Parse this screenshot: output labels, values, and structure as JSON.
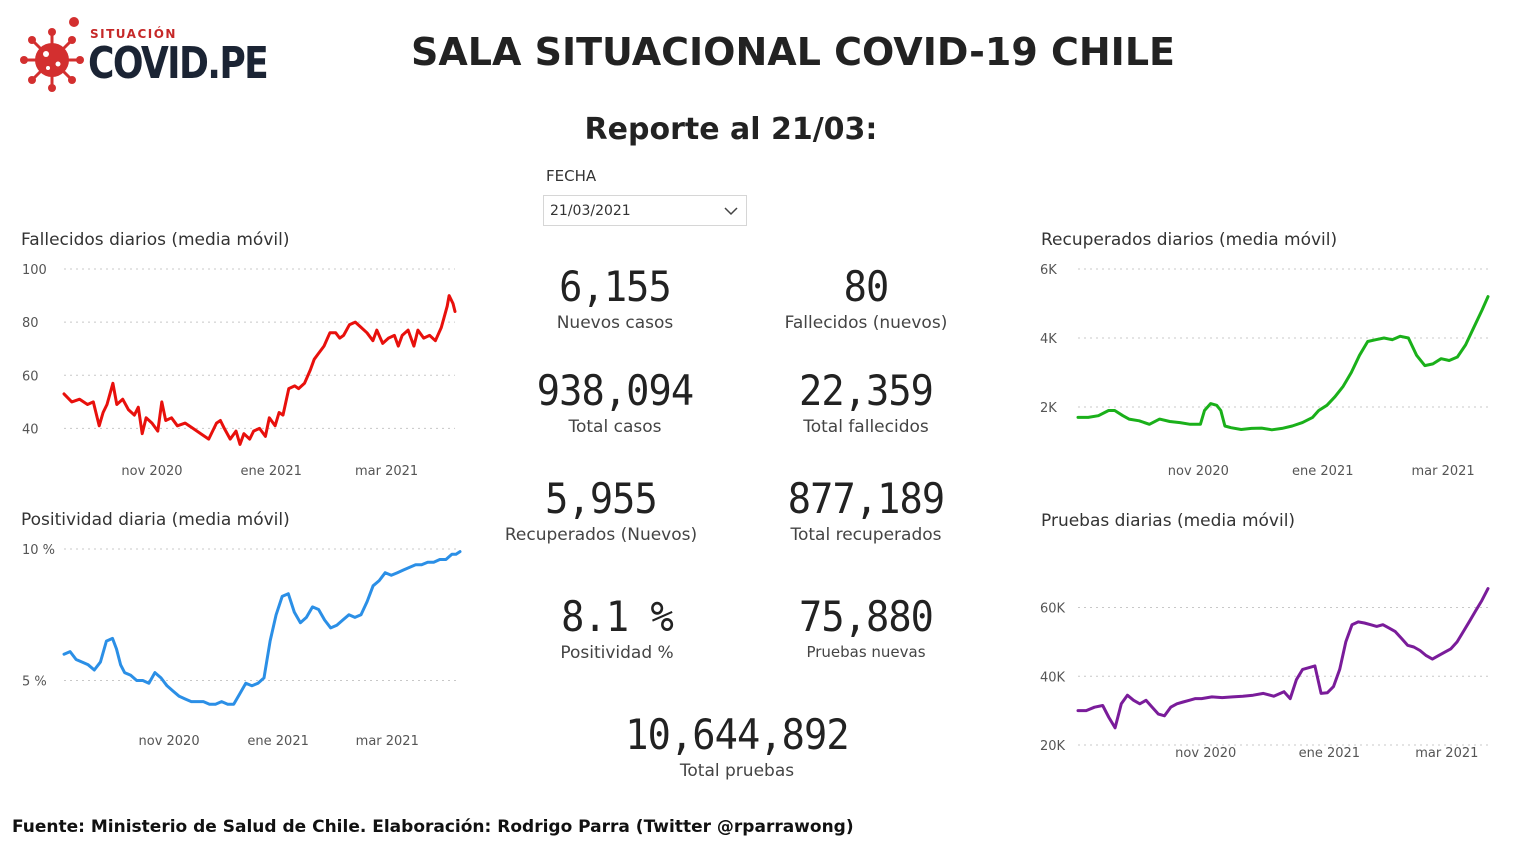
{
  "header": {
    "logo_small": "SITUACIÓN",
    "logo_big": "COVID.PE",
    "title": "SALA SITUACIONAL COVID-19 CHILE",
    "report": "Reporte al 21/03:"
  },
  "filter": {
    "label": "FECHA",
    "value": "21/03/2021"
  },
  "colors": {
    "fallecidos": "#e8100c",
    "positividad": "#2b8fe6",
    "recuperados": "#1ab01a",
    "pruebas": "#7a1c9a",
    "grid": "#c8c8c8",
    "axis_text": "#555555"
  },
  "kpis": {
    "nuevos_casos": {
      "value": "6,155",
      "label": "Nuevos casos"
    },
    "fallecidos_nuevos": {
      "value": "80",
      "label": "Fallecidos (nuevos)"
    },
    "total_casos": {
      "value": "938,094",
      "label": "Total casos"
    },
    "total_fallecidos": {
      "value": "22,359",
      "label": "Total fallecidos"
    },
    "recuperados_nuevos": {
      "value": "5,955",
      "label": "Recuperados (Nuevos)"
    },
    "total_recuperados": {
      "value": "877,189",
      "label": "Total recuperados"
    },
    "positividad": {
      "value": "8.1 %",
      "label": "Positividad %"
    },
    "pruebas_nuevas": {
      "value": "75,880",
      "label": "Pruebas nuevas"
    },
    "total_pruebas": {
      "value": "10,644,892",
      "label": "Total pruebas"
    }
  },
  "footer": "Fuente: Ministerio de Salud de Chile. Elaboración: Rodrigo Parra (Twitter @rparrawong)",
  "chart_data": [
    {
      "id": "fallecidos",
      "type": "line",
      "title": "Fallecidos diarios (media móvil)",
      "ylim": [
        30,
        100
      ],
      "yticks": [
        {
          "v": 40,
          "label": "40"
        },
        {
          "v": 60,
          "label": "60"
        },
        {
          "v": 80,
          "label": "80"
        },
        {
          "v": 100,
          "label": "100"
        }
      ],
      "xticks": [
        {
          "v": 45,
          "label": "nov 2020"
        },
        {
          "v": 106,
          "label": "ene 2021"
        },
        {
          "v": 165,
          "label": "mar 2021"
        }
      ],
      "xlim": [
        0,
        200
      ],
      "grid": true,
      "series": [
        {
          "x": [
            0,
            4,
            8,
            12,
            15,
            18,
            20,
            22,
            25,
            27,
            30,
            33,
            36,
            38,
            40,
            42,
            45,
            48,
            50,
            52,
            55,
            58,
            62,
            66,
            70,
            74,
            78,
            80,
            82,
            85,
            88,
            90,
            92,
            95,
            97,
            100,
            103,
            105,
            108,
            110,
            112,
            115,
            118,
            120,
            123,
            126,
            128,
            130,
            133,
            136,
            139,
            141,
            143,
            146,
            149,
            152,
            155,
            158,
            160,
            163,
            166,
            169,
            171,
            173,
            176,
            179,
            181,
            184,
            187,
            190,
            193,
            196,
            197,
            199,
            200
          ],
          "y": [
            53,
            50,
            51,
            49,
            50,
            41,
            46,
            49,
            57,
            49,
            51,
            47,
            45,
            48,
            38,
            44,
            42,
            39,
            50,
            43,
            44,
            41,
            42,
            40,
            38,
            36,
            42,
            43,
            40,
            36,
            39,
            34,
            38,
            36,
            39,
            40,
            37,
            44,
            41,
            46,
            45,
            55,
            56,
            55,
            57,
            62,
            66,
            68,
            71,
            76,
            76,
            74,
            75,
            79,
            80,
            78,
            76,
            73,
            77,
            72,
            74,
            75,
            71,
            75,
            77,
            71,
            77,
            74,
            75,
            73,
            78,
            86,
            90,
            87,
            84
          ]
        }
      ]
    },
    {
      "id": "positividad",
      "type": "line",
      "title": "Positividad diaria (media móvil)",
      "ylim": [
        3.5,
        10
      ],
      "yticks": [
        {
          "v": 5,
          "label": "5 %"
        },
        {
          "v": 10,
          "label": "10 %"
        }
      ],
      "xticks": [
        {
          "v": 52,
          "label": "nov 2020"
        },
        {
          "v": 106,
          "label": "ene 2021"
        },
        {
          "v": 160,
          "label": "mar 2021"
        }
      ],
      "xlim": [
        0,
        196
      ],
      "grid": true,
      "series": [
        {
          "x": [
            0,
            3,
            6,
            9,
            12,
            15,
            18,
            21,
            24,
            26,
            28,
            30,
            33,
            36,
            39,
            42,
            45,
            48,
            51,
            54,
            57,
            60,
            63,
            66,
            69,
            72,
            75,
            78,
            81,
            84,
            87,
            90,
            93,
            96,
            99,
            102,
            105,
            108,
            111,
            114,
            117,
            120,
            123,
            126,
            129,
            132,
            135,
            138,
            141,
            144,
            147,
            150,
            153,
            156,
            159,
            162,
            165,
            168,
            171,
            174,
            177,
            180,
            183,
            186,
            189,
            192,
            194,
            196
          ],
          "y": [
            6.0,
            6.1,
            5.8,
            5.7,
            5.6,
            5.4,
            5.7,
            6.5,
            6.6,
            6.2,
            5.6,
            5.3,
            5.2,
            5.0,
            5.0,
            4.9,
            5.3,
            5.1,
            4.8,
            4.6,
            4.4,
            4.3,
            4.2,
            4.2,
            4.2,
            4.1,
            4.1,
            4.2,
            4.1,
            4.1,
            4.5,
            4.9,
            4.8,
            4.9,
            5.1,
            6.5,
            7.5,
            8.2,
            8.3,
            7.6,
            7.2,
            7.4,
            7.8,
            7.7,
            7.3,
            7.0,
            7.1,
            7.3,
            7.5,
            7.4,
            7.5,
            8.0,
            8.6,
            8.8,
            9.1,
            9.0,
            9.1,
            9.2,
            9.3,
            9.4,
            9.4,
            9.5,
            9.5,
            9.6,
            9.6,
            9.8,
            9.8,
            9.9
          ]
        }
      ]
    },
    {
      "id": "recuperados",
      "type": "line",
      "title": "Recuperados diarios (media móvil)",
      "ylim": [
        900,
        6000
      ],
      "yticks": [
        {
          "v": 2000,
          "label": "2K"
        },
        {
          "v": 4000,
          "label": "4K"
        },
        {
          "v": 6000,
          "label": "6K"
        }
      ],
      "xticks": [
        {
          "v": 59,
          "label": "nov 2020"
        },
        {
          "v": 120,
          "label": "ene 2021"
        },
        {
          "v": 179,
          "label": "mar 2021"
        }
      ],
      "xlim": [
        0,
        201
      ],
      "grid": true,
      "series": [
        {
          "x": [
            0,
            5,
            10,
            15,
            18,
            22,
            25,
            30,
            35,
            40,
            45,
            50,
            55,
            60,
            62,
            65,
            68,
            70,
            72,
            75,
            80,
            85,
            90,
            95,
            100,
            105,
            110,
            115,
            118,
            122,
            126,
            130,
            134,
            138,
            142,
            146,
            150,
            154,
            158,
            162,
            166,
            170,
            174,
            178,
            182,
            186,
            190,
            194,
            198,
            201
          ],
          "y": [
            1700,
            1700,
            1750,
            1900,
            1900,
            1750,
            1650,
            1600,
            1500,
            1650,
            1580,
            1550,
            1500,
            1500,
            1900,
            2100,
            2050,
            1900,
            1450,
            1400,
            1350,
            1380,
            1390,
            1340,
            1380,
            1450,
            1550,
            1700,
            1900,
            2050,
            2300,
            2600,
            3000,
            3500,
            3900,
            3950,
            4000,
            3950,
            4050,
            4000,
            3500,
            3200,
            3250,
            3400,
            3350,
            3450,
            3800,
            4300,
            4800,
            5200
          ]
        }
      ]
    },
    {
      "id": "pruebas",
      "type": "line",
      "title": "Pruebas diarias (media móvil)",
      "ylim": [
        20000,
        68000
      ],
      "yticks": [
        {
          "v": 20000,
          "label": "20K"
        },
        {
          "v": 40000,
          "label": "40K"
        },
        {
          "v": 60000,
          "label": "60K"
        }
      ],
      "xticks": [
        {
          "v": 62,
          "label": "nov 2020"
        },
        {
          "v": 122,
          "label": "ene 2021"
        },
        {
          "v": 179,
          "label": "mar 2021"
        }
      ],
      "xlim": [
        0,
        199
      ],
      "grid": true,
      "series": [
        {
          "x": [
            0,
            4,
            8,
            12,
            15,
            18,
            21,
            24,
            27,
            30,
            33,
            36,
            39,
            42,
            45,
            48,
            51,
            54,
            57,
            60,
            65,
            70,
            75,
            80,
            85,
            90,
            95,
            100,
            103,
            106,
            109,
            112,
            115,
            118,
            121,
            124,
            127,
            130,
            133,
            136,
            139,
            142,
            145,
            148,
            151,
            154,
            157,
            160,
            163,
            166,
            169,
            172,
            175,
            178,
            181,
            184,
            187,
            190,
            193,
            196,
            199
          ],
          "y": [
            30000,
            30000,
            31000,
            31500,
            28000,
            25000,
            32000,
            34500,
            33000,
            32000,
            33000,
            31000,
            29000,
            28500,
            31000,
            32000,
            32500,
            33000,
            33500,
            33500,
            34000,
            33800,
            34000,
            34200,
            34500,
            35000,
            34200,
            35500,
            33500,
            39000,
            42000,
            42500,
            43000,
            35000,
            35200,
            37000,
            42000,
            50000,
            55000,
            55800,
            55500,
            55000,
            54500,
            55000,
            54000,
            53000,
            51000,
            49000,
            48500,
            47500,
            46000,
            45000,
            46000,
            47000,
            48000,
            50000,
            53000,
            56000,
            59000,
            62000,
            65500
          ]
        }
      ]
    }
  ]
}
